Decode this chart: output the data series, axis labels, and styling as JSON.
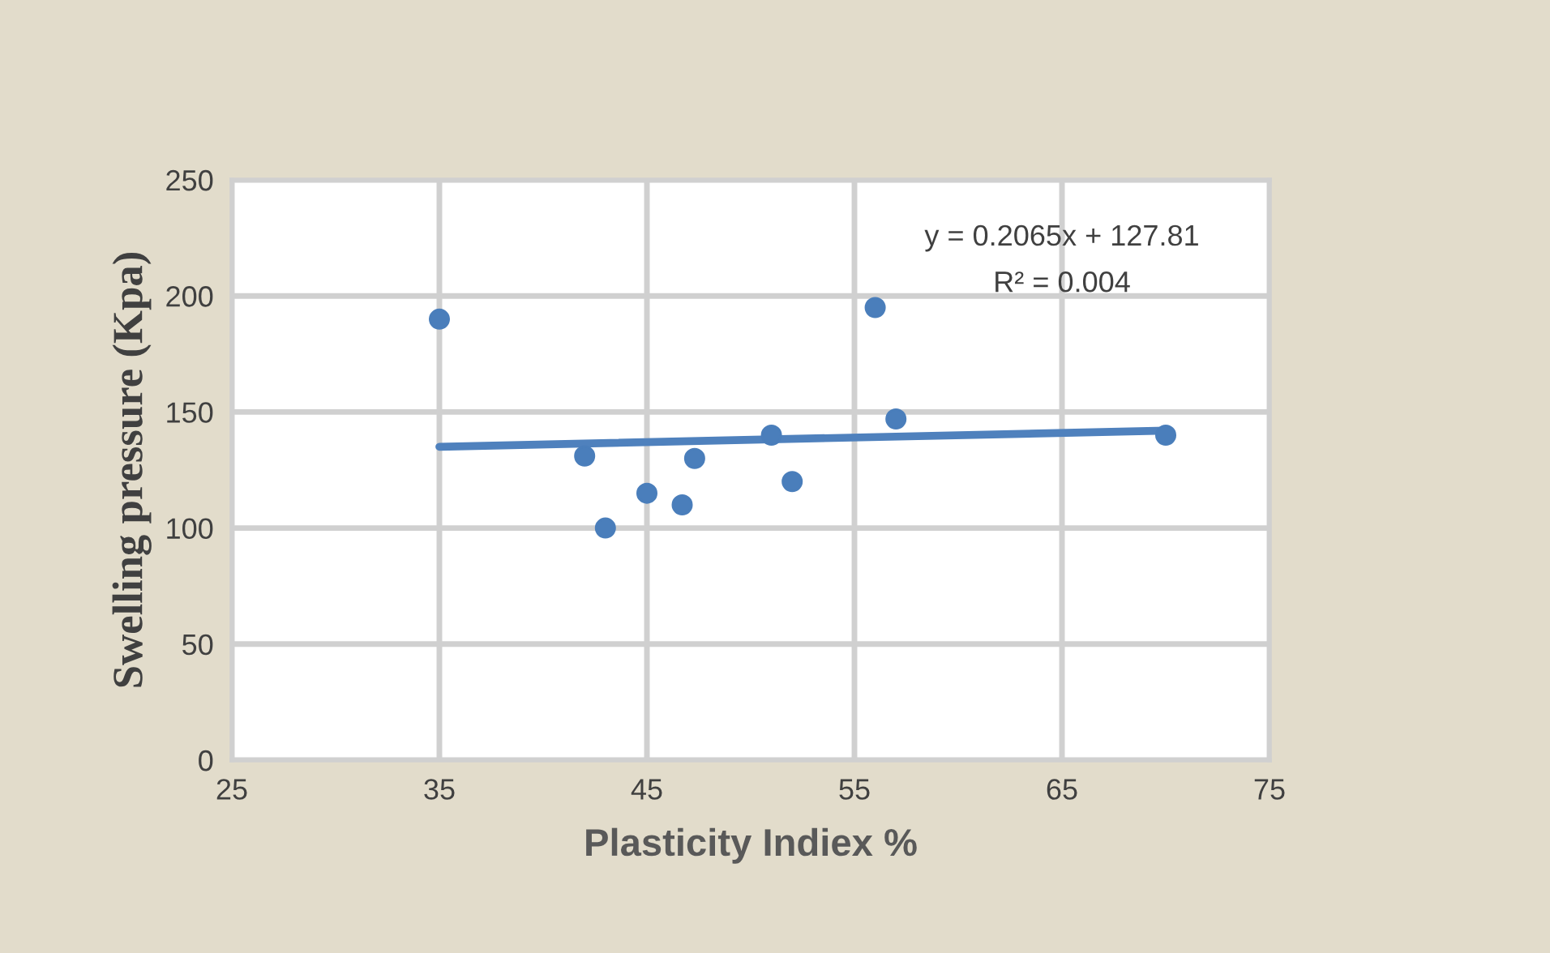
{
  "chart_data": {
    "type": "scatter",
    "xlabel": "Plasticity Indiex %",
    "ylabel": "Swelling pressure (Kpa)",
    "xlim": [
      25,
      75
    ],
    "xticks": [
      25,
      35,
      45,
      55,
      65,
      75
    ],
    "ylim": [
      0,
      250
    ],
    "yticks": [
      0,
      50,
      100,
      150,
      200,
      250
    ],
    "grid": true,
    "marker": "circle",
    "annotations": [
      "y = 0.2065x + 127.81",
      "R² = 0.004"
    ],
    "series": [
      {
        "color": "#4a7ebb",
        "x": [
          35,
          42,
          43,
          45,
          46.7,
          47.3,
          51,
          52,
          56,
          57,
          70
        ],
        "values": [
          190,
          131,
          100,
          115,
          110,
          130,
          140,
          120,
          195,
          147,
          140
        ]
      },
      {
        "type": "line",
        "color": "#4f81bd",
        "x": [
          35,
          70
        ],
        "values": [
          135,
          142
        ],
        "line_style": "solid",
        "marker": "none"
      }
    ]
  }
}
